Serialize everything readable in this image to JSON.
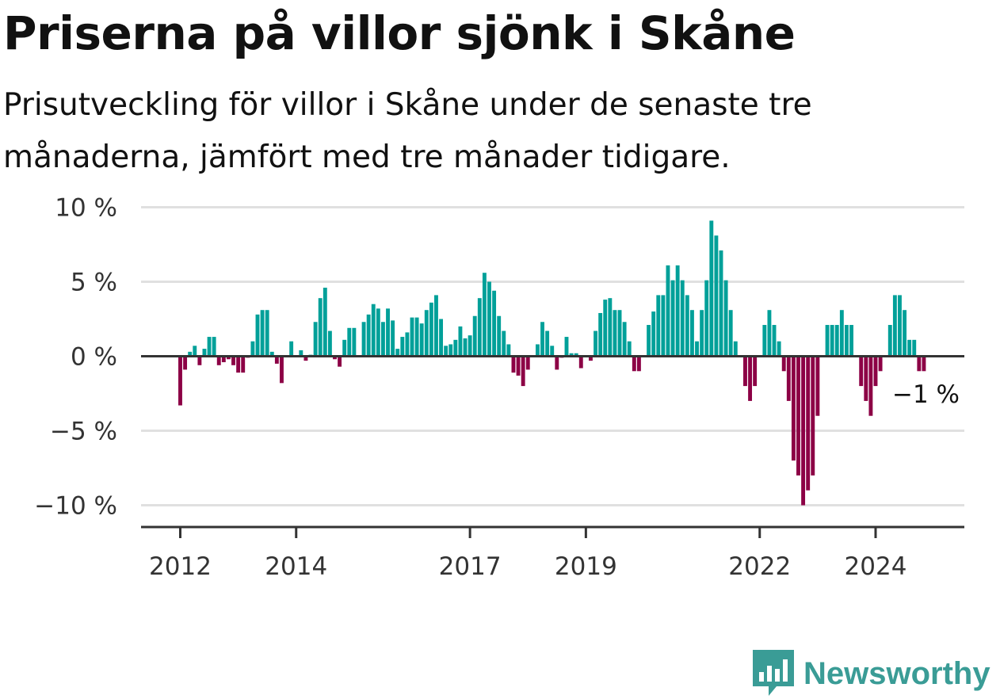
{
  "chart_data": {
    "type": "bar",
    "title": "Priserna på villor sjönk i Skåne",
    "subtitle_lines": [
      "Prisutveckling för villor i Skåne under de senaste tre",
      "månaderna, jämfört med tre månader tidigare."
    ],
    "x_start": "2012-01",
    "x_end": "2025-06",
    "x_ticks": [
      {
        "label": "2012",
        "date": "2012-01"
      },
      {
        "label": "2014",
        "date": "2014-01"
      },
      {
        "label": "2017",
        "date": "2017-01"
      },
      {
        "label": "2019",
        "date": "2019-01"
      },
      {
        "label": "2022",
        "date": "2022-01"
      },
      {
        "label": "2024",
        "date": "2024-01"
      }
    ],
    "y_ticks": [
      {
        "label": "10 %",
        "value": 10
      },
      {
        "label": "5 %",
        "value": 5
      },
      {
        "label": "0 %",
        "value": 0
      },
      {
        "label": "−5 %",
        "value": -5
      },
      {
        "label": "−10 %",
        "value": -10
      }
    ],
    "ylim": [
      -11.5,
      10.5
    ],
    "grid": true,
    "colors": {
      "positive": "#00a099",
      "negative": "#8c0045",
      "grid": "#e0e0e0",
      "axis": "#333333"
    },
    "last_value_label": "−1 %",
    "series": [
      {
        "values": [
          -3.3,
          -0.9,
          0.3,
          0.7,
          -0.6,
          0.5,
          1.3,
          1.3,
          -0.6,
          -0.4,
          -0.2,
          -0.6,
          -1.1,
          -1.1,
          -0.1,
          1.0,
          2.8,
          3.1,
          3.1,
          0.3,
          -0.5,
          -1.8,
          0.0,
          1.0,
          0.0,
          0.4,
          -0.3,
          0.1,
          2.3,
          3.9,
          4.6,
          1.7,
          -0.2,
          -0.7,
          1.1,
          1.9,
          1.9,
          0.0,
          2.3,
          2.8,
          3.5,
          3.2,
          2.3,
          3.2,
          2.4,
          0.5,
          1.3,
          1.6,
          2.6,
          2.6,
          2.2,
          3.1,
          3.6,
          4.1,
          2.5,
          0.7,
          0.8,
          1.1,
          2.0,
          1.2,
          1.4,
          2.7,
          3.9,
          5.6,
          5.0,
          4.4,
          2.7,
          1.7,
          0.8,
          -1.1,
          -1.3,
          -2.0,
          -0.9,
          0.0,
          0.8,
          2.3,
          1.7,
          0.7,
          -0.9,
          -0.1,
          1.3,
          0.2,
          0.2,
          -0.8,
          0.0,
          -0.3,
          1.7,
          2.9,
          3.8,
          3.9,
          3.1,
          3.1,
          2.3,
          1.0,
          -1.0,
          -1.0,
          0.0,
          2.1,
          3.0,
          4.1,
          4.1,
          6.1,
          5.1,
          6.1,
          5.1,
          4.1,
          3.1,
          1.0,
          3.1,
          5.1,
          9.1,
          8.1,
          7.1,
          5.1,
          3.1,
          1.0,
          0.0,
          -2.0,
          -3.0,
          -2.0,
          0.0,
          2.1,
          3.1,
          2.1,
          1.0,
          -1.0,
          -3.0,
          -7.0,
          -8.0,
          -10.0,
          -9.0,
          -8.0,
          -4.0,
          0.0,
          2.1,
          2.1,
          2.1,
          3.1,
          2.1,
          2.1,
          0.0,
          -2.0,
          -3.0,
          -4.0,
          -2.0,
          -1.0,
          0.0,
          2.1,
          4.1,
          4.1,
          3.1,
          1.1,
          1.1,
          -1.0,
          -1.0
        ]
      }
    ]
  },
  "brand": {
    "name": "Newsworthy"
  }
}
